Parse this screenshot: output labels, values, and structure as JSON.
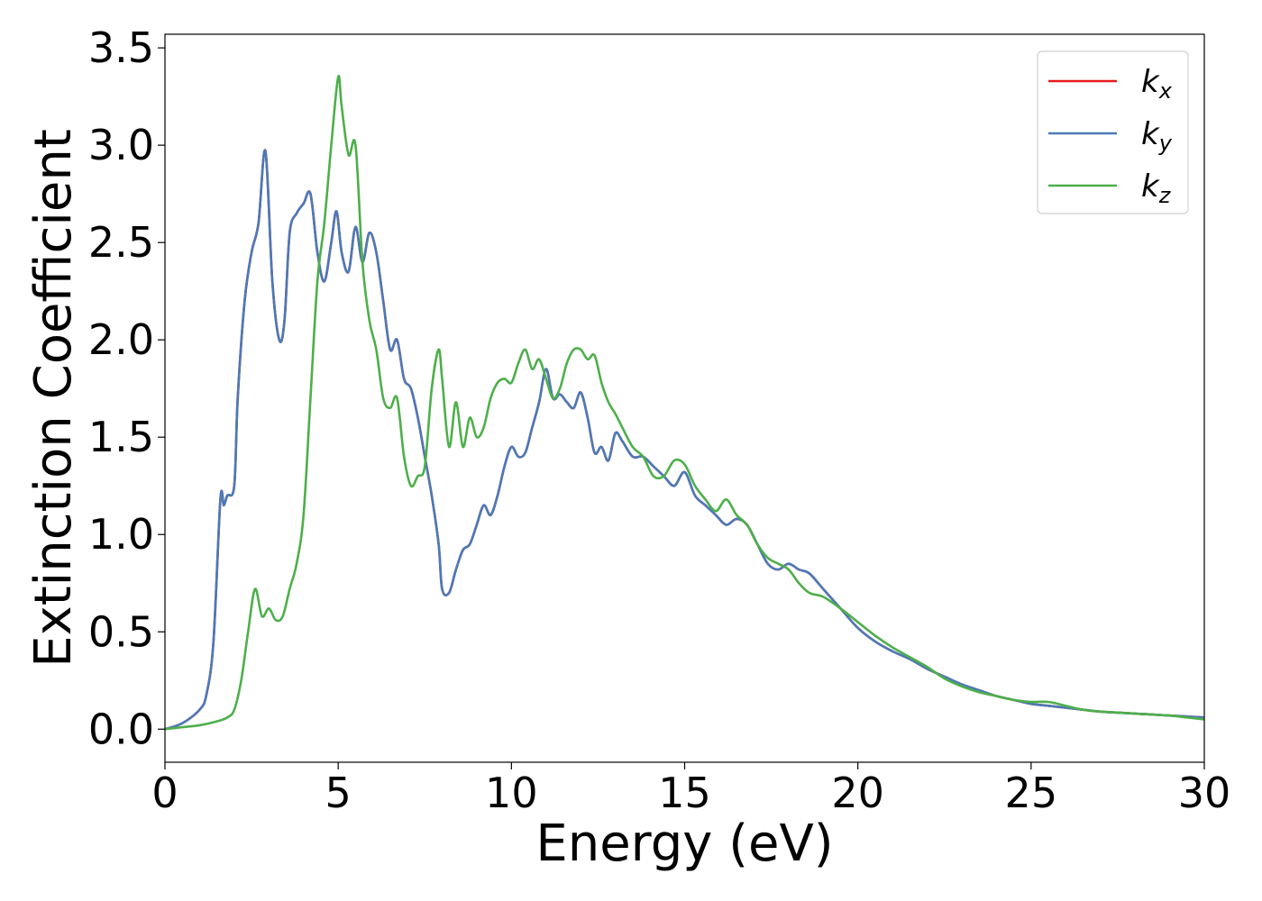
{
  "chart_data": {
    "type": "line",
    "xlabel": "Energy (eV)",
    "ylabel": "Extinction Coefficient",
    "xlim": [
      0,
      30
    ],
    "ylim": [
      -0.17,
      3.57
    ],
    "xticks": [
      0,
      5,
      10,
      15,
      20,
      25,
      30
    ],
    "xtick_labels": [
      "0",
      "5",
      "10",
      "15",
      "20",
      "25",
      "30"
    ],
    "yticks": [
      0.0,
      0.5,
      1.0,
      1.5,
      2.0,
      2.5,
      3.0,
      3.5
    ],
    "ytick_labels": [
      "0.0",
      "0.5",
      "1.0",
      "1.5",
      "2.0",
      "2.5",
      "3.0",
      "3.5"
    ],
    "grid": false,
    "legend_position": "top-right",
    "series": [
      {
        "name": "k",
        "subscript": "x",
        "color": "#e41a1c",
        "x": [
          0,
          0.5,
          1.0,
          1.2,
          1.4,
          1.6,
          1.7,
          1.8,
          2.0,
          2.1,
          2.3,
          2.5,
          2.7,
          2.9,
          3.1,
          3.3,
          3.45,
          3.6,
          3.8,
          4.0,
          4.2,
          4.4,
          4.6,
          4.8,
          4.95,
          5.1,
          5.3,
          5.5,
          5.7,
          5.9,
          6.1,
          6.3,
          6.5,
          6.7,
          6.9,
          7.1,
          7.3,
          7.5,
          7.7,
          7.9,
          8.0,
          8.2,
          8.4,
          8.6,
          8.8,
          9.0,
          9.2,
          9.4,
          9.6,
          9.8,
          10.0,
          10.2,
          10.4,
          10.6,
          10.8,
          11.0,
          11.2,
          11.4,
          11.6,
          11.8,
          12.0,
          12.2,
          12.4,
          12.6,
          12.8,
          13.0,
          13.2,
          13.5,
          13.8,
          14.1,
          14.4,
          14.7,
          15.0,
          15.3,
          15.6,
          15.9,
          16.2,
          16.5,
          16.8,
          17.1,
          17.4,
          17.7,
          18.0,
          18.3,
          18.6,
          19.0,
          19.5,
          20.0,
          20.5,
          21.0,
          21.5,
          22.0,
          22.5,
          23.0,
          23.5,
          24.0,
          24.5,
          25.0,
          25.5,
          26.0,
          26.5,
          27.0,
          27.5,
          28.0,
          28.5,
          29.0,
          29.5,
          30.0
        ],
        "values": [
          0.0,
          0.03,
          0.1,
          0.18,
          0.45,
          1.18,
          1.15,
          1.2,
          1.25,
          1.7,
          2.2,
          2.45,
          2.6,
          2.97,
          2.3,
          2.0,
          2.1,
          2.55,
          2.65,
          2.7,
          2.75,
          2.45,
          2.3,
          2.5,
          2.66,
          2.45,
          2.35,
          2.58,
          2.4,
          2.55,
          2.45,
          2.2,
          1.95,
          2.0,
          1.8,
          1.75,
          1.6,
          1.4,
          1.2,
          0.95,
          0.72,
          0.7,
          0.82,
          0.92,
          0.95,
          1.05,
          1.15,
          1.1,
          1.2,
          1.35,
          1.45,
          1.4,
          1.42,
          1.55,
          1.68,
          1.85,
          1.7,
          1.72,
          1.68,
          1.65,
          1.73,
          1.6,
          1.42,
          1.45,
          1.38,
          1.52,
          1.48,
          1.4,
          1.4,
          1.35,
          1.3,
          1.25,
          1.32,
          1.2,
          1.15,
          1.1,
          1.05,
          1.08,
          1.05,
          0.95,
          0.85,
          0.82,
          0.85,
          0.82,
          0.8,
          0.72,
          0.62,
          0.52,
          0.45,
          0.4,
          0.36,
          0.31,
          0.27,
          0.23,
          0.2,
          0.17,
          0.15,
          0.13,
          0.12,
          0.11,
          0.1,
          0.09,
          0.085,
          0.08,
          0.075,
          0.07,
          0.065,
          0.06
        ]
      },
      {
        "name": "k",
        "subscript": "y",
        "color": "#4a7ab8",
        "x": [
          0,
          0.5,
          1.0,
          1.2,
          1.4,
          1.6,
          1.7,
          1.8,
          2.0,
          2.1,
          2.3,
          2.5,
          2.7,
          2.9,
          3.1,
          3.3,
          3.45,
          3.6,
          3.8,
          4.0,
          4.2,
          4.4,
          4.6,
          4.8,
          4.95,
          5.1,
          5.3,
          5.5,
          5.7,
          5.9,
          6.1,
          6.3,
          6.5,
          6.7,
          6.9,
          7.1,
          7.3,
          7.5,
          7.7,
          7.9,
          8.0,
          8.2,
          8.4,
          8.6,
          8.8,
          9.0,
          9.2,
          9.4,
          9.6,
          9.8,
          10.0,
          10.2,
          10.4,
          10.6,
          10.8,
          11.0,
          11.2,
          11.4,
          11.6,
          11.8,
          12.0,
          12.2,
          12.4,
          12.6,
          12.8,
          13.0,
          13.2,
          13.5,
          13.8,
          14.1,
          14.4,
          14.7,
          15.0,
          15.3,
          15.6,
          15.9,
          16.2,
          16.5,
          16.8,
          17.1,
          17.4,
          17.7,
          18.0,
          18.3,
          18.6,
          19.0,
          19.5,
          20.0,
          20.5,
          21.0,
          21.5,
          22.0,
          22.5,
          23.0,
          23.5,
          24.0,
          24.5,
          25.0,
          25.5,
          26.0,
          26.5,
          27.0,
          27.5,
          28.0,
          28.5,
          29.0,
          29.5,
          30.0
        ],
        "values": [
          0.0,
          0.03,
          0.1,
          0.18,
          0.45,
          1.18,
          1.15,
          1.2,
          1.25,
          1.7,
          2.2,
          2.45,
          2.6,
          2.97,
          2.3,
          2.0,
          2.1,
          2.55,
          2.65,
          2.7,
          2.75,
          2.45,
          2.3,
          2.5,
          2.66,
          2.45,
          2.35,
          2.58,
          2.4,
          2.55,
          2.45,
          2.2,
          1.95,
          2.0,
          1.8,
          1.75,
          1.6,
          1.4,
          1.2,
          0.95,
          0.72,
          0.7,
          0.82,
          0.92,
          0.95,
          1.05,
          1.15,
          1.1,
          1.2,
          1.35,
          1.45,
          1.4,
          1.42,
          1.55,
          1.68,
          1.85,
          1.7,
          1.72,
          1.68,
          1.65,
          1.73,
          1.6,
          1.42,
          1.45,
          1.38,
          1.52,
          1.48,
          1.4,
          1.4,
          1.35,
          1.3,
          1.25,
          1.32,
          1.2,
          1.15,
          1.1,
          1.05,
          1.08,
          1.05,
          0.95,
          0.85,
          0.82,
          0.85,
          0.82,
          0.8,
          0.72,
          0.62,
          0.52,
          0.45,
          0.4,
          0.36,
          0.31,
          0.27,
          0.23,
          0.2,
          0.17,
          0.15,
          0.13,
          0.12,
          0.11,
          0.1,
          0.09,
          0.085,
          0.08,
          0.075,
          0.07,
          0.065,
          0.06
        ]
      },
      {
        "name": "k",
        "subscript": "z",
        "color": "#4daf4a",
        "x": [
          0,
          0.5,
          1.0,
          1.5,
          1.8,
          2.0,
          2.2,
          2.4,
          2.6,
          2.8,
          3.0,
          3.2,
          3.4,
          3.6,
          3.8,
          4.0,
          4.2,
          4.4,
          4.6,
          4.8,
          5.0,
          5.1,
          5.3,
          5.5,
          5.7,
          5.9,
          6.1,
          6.3,
          6.5,
          6.7,
          6.9,
          7.1,
          7.3,
          7.5,
          7.7,
          7.9,
          8.0,
          8.2,
          8.4,
          8.6,
          8.8,
          9.0,
          9.2,
          9.4,
          9.6,
          9.8,
          10.0,
          10.2,
          10.4,
          10.6,
          10.8,
          11.0,
          11.2,
          11.4,
          11.6,
          11.8,
          12.0,
          12.2,
          12.4,
          12.6,
          12.8,
          13.0,
          13.2,
          13.5,
          13.8,
          14.1,
          14.4,
          14.7,
          15.0,
          15.3,
          15.6,
          15.9,
          16.2,
          16.5,
          16.8,
          17.1,
          17.4,
          17.7,
          18.0,
          18.3,
          18.6,
          19.0,
          19.5,
          20.0,
          20.5,
          21.0,
          21.5,
          22.0,
          22.5,
          23.0,
          23.5,
          24.0,
          24.5,
          25.0,
          25.5,
          26.0,
          26.5,
          27.0,
          27.5,
          28.0,
          28.5,
          29.0,
          29.5,
          30.0
        ],
        "values": [
          0.0,
          0.01,
          0.02,
          0.04,
          0.06,
          0.1,
          0.25,
          0.5,
          0.72,
          0.58,
          0.62,
          0.56,
          0.58,
          0.72,
          0.85,
          1.1,
          1.7,
          2.3,
          2.6,
          3.0,
          3.35,
          3.2,
          2.95,
          3.0,
          2.4,
          2.1,
          1.95,
          1.7,
          1.65,
          1.7,
          1.4,
          1.25,
          1.3,
          1.35,
          1.75,
          1.95,
          1.8,
          1.45,
          1.68,
          1.45,
          1.6,
          1.5,
          1.55,
          1.7,
          1.78,
          1.8,
          1.78,
          1.88,
          1.95,
          1.85,
          1.9,
          1.8,
          1.7,
          1.75,
          1.88,
          1.95,
          1.95,
          1.9,
          1.92,
          1.78,
          1.68,
          1.62,
          1.55,
          1.45,
          1.4,
          1.3,
          1.3,
          1.38,
          1.36,
          1.25,
          1.18,
          1.12,
          1.18,
          1.1,
          1.05,
          0.95,
          0.88,
          0.85,
          0.82,
          0.75,
          0.7,
          0.68,
          0.62,
          0.55,
          0.48,
          0.42,
          0.37,
          0.32,
          0.26,
          0.22,
          0.19,
          0.17,
          0.15,
          0.14,
          0.14,
          0.12,
          0.1,
          0.09,
          0.085,
          0.08,
          0.075,
          0.07,
          0.06,
          0.05
        ]
      }
    ]
  }
}
